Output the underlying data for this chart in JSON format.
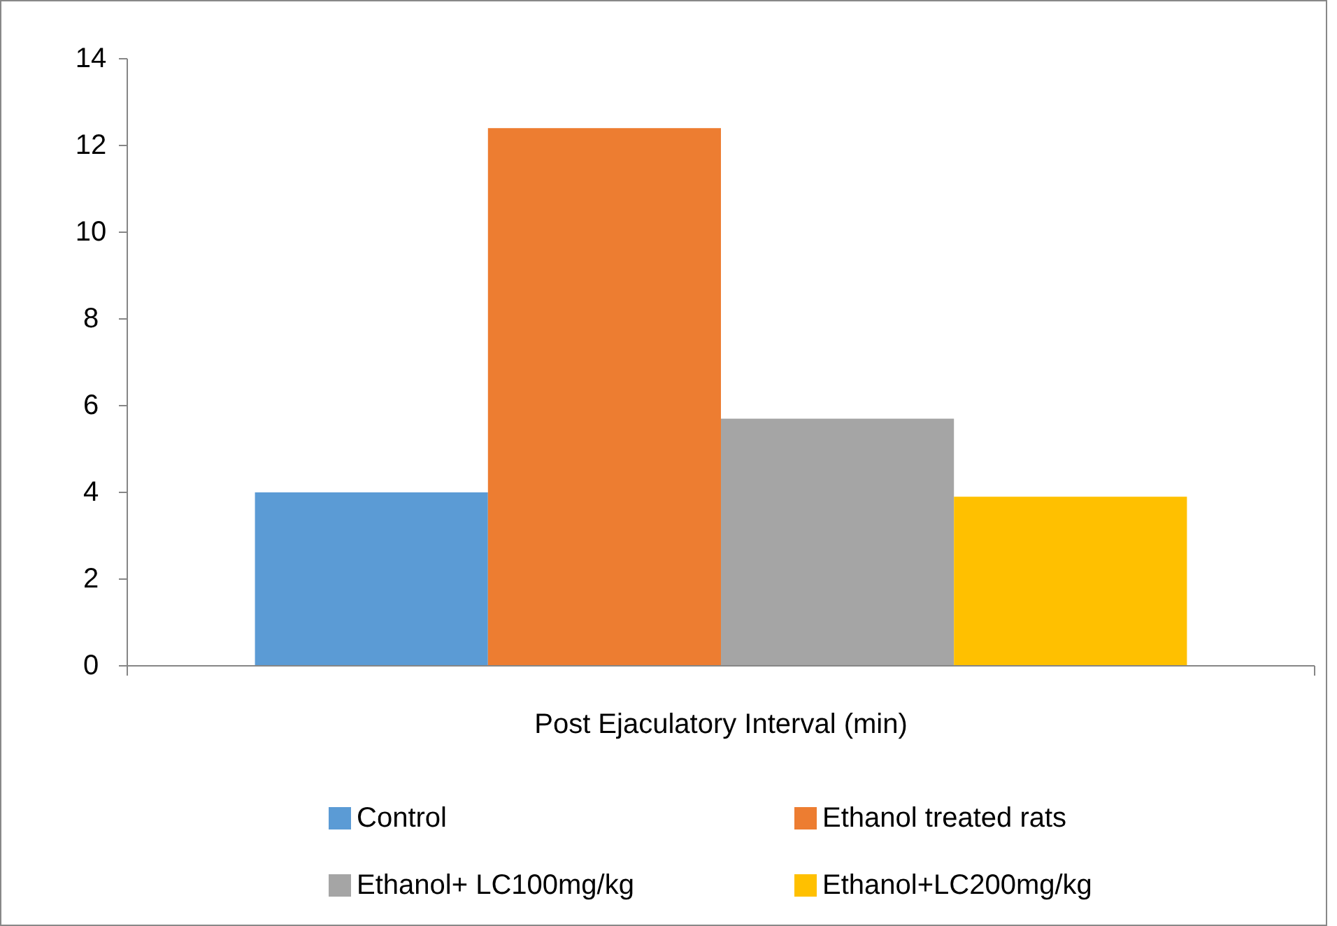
{
  "chart_data": {
    "type": "bar",
    "categories": [
      "Post Ejaculatory Interval (min)"
    ],
    "series": [
      {
        "name": "Control",
        "color": "#5b9bd5",
        "values": [
          4.0
        ]
      },
      {
        "name": "Ethanol treated rats",
        "color": "#ed7d31",
        "values": [
          12.4
        ]
      },
      {
        "name": "Ethanol+ LC100mg/kg",
        "color": "#a5a5a5",
        "values": [
          5.7
        ]
      },
      {
        "name": "Ethanol+LC200mg/kg",
        "color": "#ffc000",
        "values": [
          3.9
        ]
      }
    ],
    "ylim": [
      0,
      14
    ],
    "yticks": [
      0,
      2,
      4,
      6,
      8,
      10,
      12,
      14
    ],
    "grid": false,
    "legend": "bottom"
  }
}
